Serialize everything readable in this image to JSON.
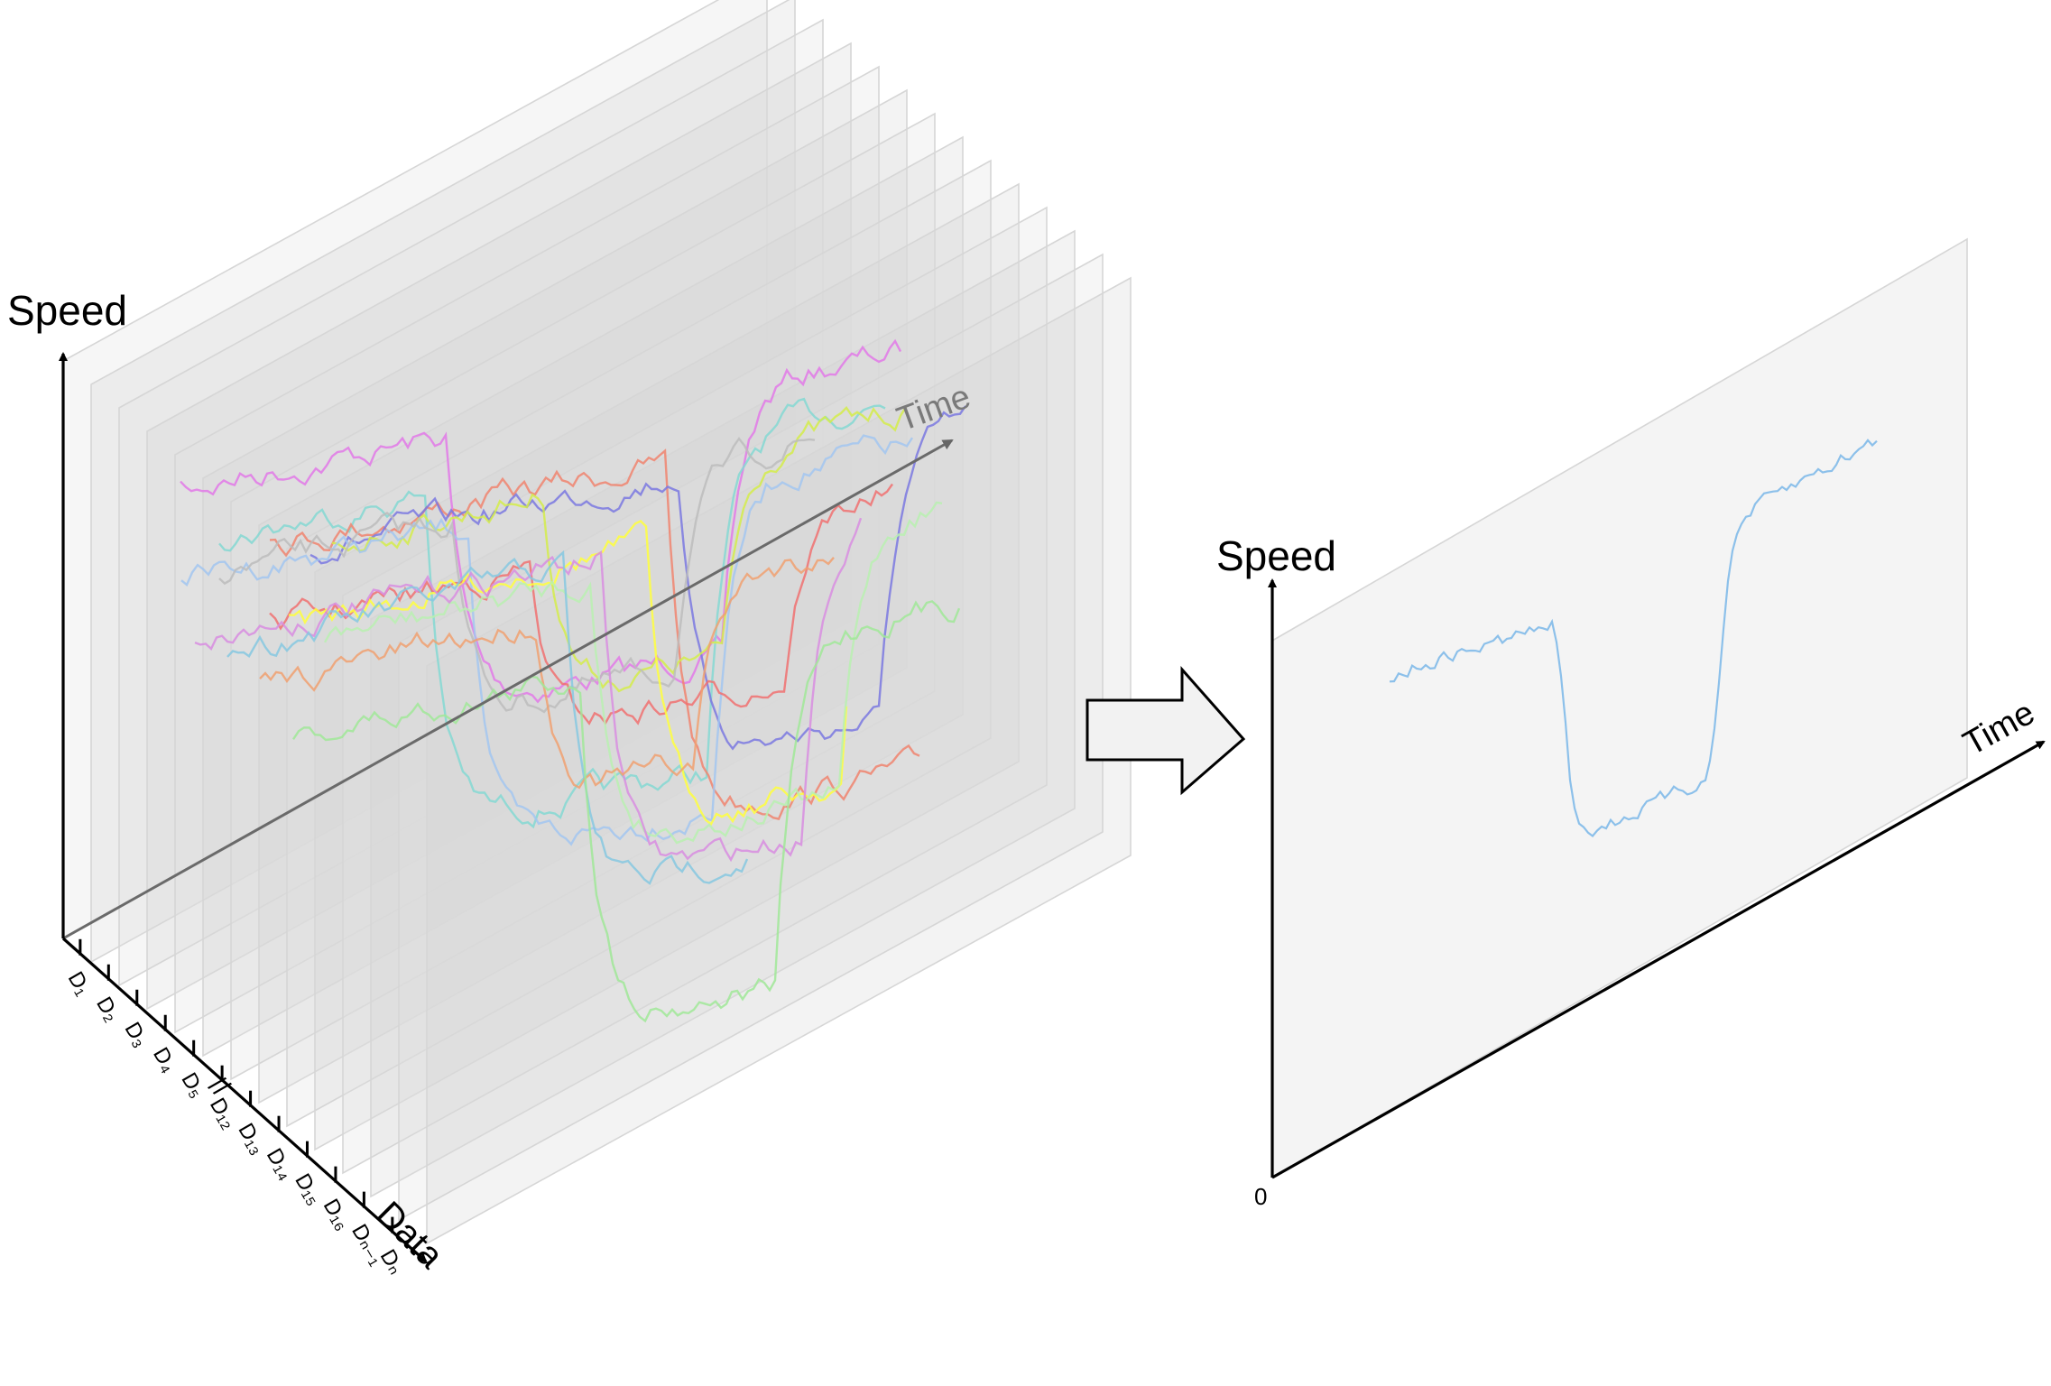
{
  "left_panel": {
    "y_axis_label": "Speed",
    "x_axis_label": "Time",
    "depth_axis_label": "Data",
    "data_ticks": [
      "D₁",
      "D₂",
      "D₃",
      "D₄",
      "D₅",
      "D₁₂",
      "D₁₃",
      "D₁₄",
      "D₁₅",
      "D₁₆",
      "Dₙ₋₁",
      "Dₙ"
    ],
    "break_marker": "//",
    "layer_count": 14,
    "series_colors": [
      "#e279e8",
      "#84d8d2",
      "#f0846e",
      "#7a78e0",
      "#d3ec4a",
      "#a2c6f0",
      "#bcbcbc",
      "#f07070",
      "#ffff3c",
      "#b8f0b0",
      "#d88de0",
      "#86c8e0",
      "#f0a070",
      "#a0e898"
    ]
  },
  "right_panel": {
    "y_axis_label": "Speed",
    "x_axis_label": "Time",
    "origin_label": "0",
    "series_color": "#8cc0ea"
  },
  "arrow": {
    "direction": "right",
    "fill": "#f2f2f2"
  }
}
